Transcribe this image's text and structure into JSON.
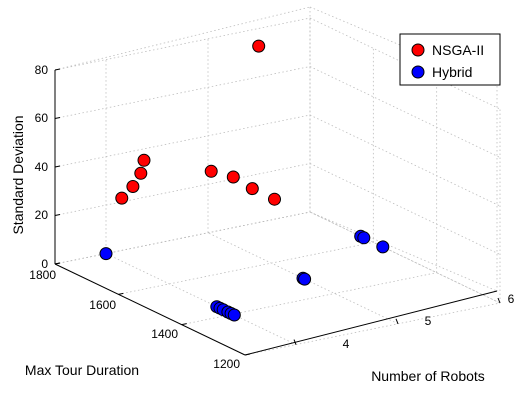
{
  "chart_data": {
    "type": "scatter",
    "subtype": "3d",
    "title": "",
    "xlabel": "Number of Robots",
    "ylabel": "Max Tour Duration",
    "zlabel": "Standard Deviation",
    "x_ticks": [
      "4",
      "5",
      "6"
    ],
    "y_ticks": [
      "1200",
      "1400",
      "1600",
      "1800"
    ],
    "z_ticks": [
      "0",
      "20",
      "40",
      "60",
      "80"
    ],
    "xlim": [
      3.5,
      6
    ],
    "ylim": [
      1200,
      1800
    ],
    "zlim": [
      0,
      80
    ],
    "grid": true,
    "legend_position": "top-right",
    "series": [
      {
        "name": "NSGA-II",
        "color": "#ff0000",
        "points": [
          {
            "x": 4,
            "y": 1750,
            "z": 26
          },
          {
            "x": 4,
            "y": 1715,
            "z": 33
          },
          {
            "x": 4,
            "y": 1690,
            "z": 40
          },
          {
            "x": 4,
            "y": 1680,
            "z": 46
          },
          {
            "x": 5,
            "y": 1790,
            "z": 26
          },
          {
            "x": 5,
            "y": 1720,
            "z": 28
          },
          {
            "x": 5,
            "y": 1660,
            "z": 27
          },
          {
            "x": 5,
            "y": 1590,
            "z": 27
          },
          {
            "x": 5,
            "y": 1640,
            "z": 87
          }
        ]
      },
      {
        "name": "Hybrid",
        "color": "#0000ff",
        "points": [
          {
            "x": 4,
            "y": 1800,
            "z": 0
          },
          {
            "x": 4,
            "y": 1450,
            "z": 0
          },
          {
            "x": 4,
            "y": 1440,
            "z": 0
          },
          {
            "x": 4,
            "y": 1430,
            "z": 0
          },
          {
            "x": 4,
            "y": 1415,
            "z": 0
          },
          {
            "x": 4,
            "y": 1405,
            "z": 0
          },
          {
            "x": 4,
            "y": 1395,
            "z": 0
          },
          {
            "x": 5,
            "y": 1500,
            "z": 0
          },
          {
            "x": 5,
            "y": 1495,
            "z": 0
          },
          {
            "x": 6,
            "y": 1640,
            "z": 0
          },
          {
            "x": 6,
            "y": 1630,
            "z": 0
          },
          {
            "x": 6,
            "y": 1570,
            "z": 0
          }
        ]
      }
    ]
  }
}
